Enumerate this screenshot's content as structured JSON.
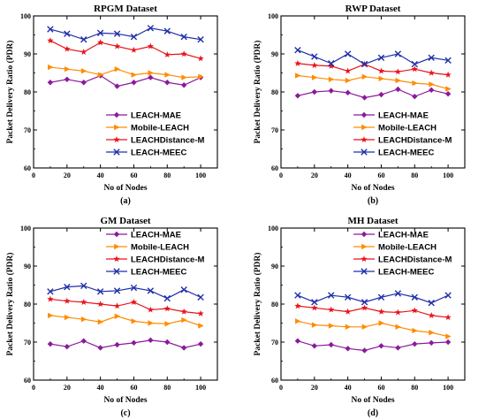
{
  "chart_data": [
    {
      "type": "line",
      "title": "RPGM Dataset",
      "caption": "(a)",
      "xlabel": "No of Nodes",
      "ylabel": "Packet Delivery Ratio (PDR)",
      "xlim": [
        0,
        110
      ],
      "ylim": [
        60,
        100
      ],
      "xticks": [
        0,
        20,
        40,
        60,
        80,
        100
      ],
      "yticks": [
        60,
        70,
        80,
        90,
        100
      ],
      "legend_position": "center-right",
      "x": [
        10,
        20,
        30,
        40,
        50,
        60,
        70,
        80,
        90,
        100
      ],
      "series": [
        {
          "name": "LEACH-MAE",
          "color": "#8B1A9B",
          "marker": "diamond",
          "values": [
            82.5,
            83.3,
            82.5,
            84.3,
            81.5,
            82.5,
            83.8,
            82.5,
            81.8,
            83.8
          ]
        },
        {
          "name": "Mobile-LEACH",
          "color": "#FF8C00",
          "marker": "triangle-right",
          "values": [
            86.5,
            86.0,
            85.5,
            84.5,
            86.0,
            84.5,
            85.0,
            84.5,
            83.8,
            84.0
          ]
        },
        {
          "name": "LEACHDistance-M",
          "color": "#E8141C",
          "marker": "star",
          "values": [
            93.5,
            91.3,
            90.5,
            93.0,
            92.0,
            91.0,
            92.0,
            89.8,
            90.0,
            88.8
          ]
        },
        {
          "name": "LEACH-MEEC",
          "color": "#1F2FA8",
          "marker": "x",
          "values": [
            96.5,
            95.3,
            93.8,
            95.5,
            95.3,
            94.5,
            96.8,
            96.0,
            94.5,
            93.8
          ]
        }
      ]
    },
    {
      "type": "line",
      "title": "RWP Dataset",
      "caption": "(b)",
      "xlabel": "No of Nodes",
      "ylabel": "Packet Delivery Ratio (PDR)",
      "xlim": [
        0,
        110
      ],
      "ylim": [
        60,
        100
      ],
      "xticks": [
        0,
        20,
        40,
        60,
        80,
        100
      ],
      "yticks": [
        60,
        70,
        80,
        90,
        100
      ],
      "legend_position": "center-right",
      "x": [
        10,
        20,
        30,
        40,
        50,
        60,
        70,
        80,
        90,
        100
      ],
      "series": [
        {
          "name": "LEACH-MAE",
          "color": "#8B1A9B",
          "marker": "diamond",
          "values": [
            79.0,
            80.0,
            80.3,
            79.8,
            78.5,
            79.3,
            80.7,
            78.8,
            80.5,
            79.5
          ]
        },
        {
          "name": "Mobile-LEACH",
          "color": "#FF8C00",
          "marker": "triangle-right",
          "values": [
            84.3,
            83.8,
            83.3,
            83.0,
            84.0,
            83.5,
            83.0,
            82.3,
            82.0,
            80.8
          ]
        },
        {
          "name": "LEACHDistance-M",
          "color": "#E8141C",
          "marker": "star",
          "values": [
            87.5,
            87.0,
            86.8,
            85.5,
            87.3,
            85.5,
            85.3,
            86.0,
            85.0,
            84.5
          ]
        },
        {
          "name": "LEACH-MEEC",
          "color": "#1F2FA8",
          "marker": "x",
          "values": [
            91.0,
            89.3,
            87.5,
            90.0,
            87.3,
            89.0,
            90.0,
            87.3,
            89.0,
            88.3
          ]
        }
      ]
    },
    {
      "type": "line",
      "title": "GM Dataset",
      "caption": "(c)",
      "xlabel": "No of Nodes",
      "ylabel": "Packet Delivery Ratio (PDR)",
      "xlim": [
        0,
        110
      ],
      "ylim": [
        60,
        100
      ],
      "xticks": [
        0,
        20,
        40,
        60,
        80,
        100
      ],
      "yticks": [
        60,
        70,
        80,
        90,
        100
      ],
      "legend_position": "top-right",
      "x": [
        10,
        20,
        30,
        40,
        50,
        60,
        70,
        80,
        90,
        100
      ],
      "series": [
        {
          "name": "LEACH-MAE",
          "color": "#8B1A9B",
          "marker": "diamond",
          "values": [
            69.5,
            68.8,
            70.3,
            68.5,
            69.3,
            69.8,
            70.5,
            70.0,
            68.5,
            69.5
          ]
        },
        {
          "name": "Mobile-LEACH",
          "color": "#FF8C00",
          "marker": "triangle-right",
          "values": [
            77.0,
            76.5,
            76.0,
            75.3,
            76.8,
            75.5,
            75.0,
            74.8,
            75.8,
            74.3
          ]
        },
        {
          "name": "LEACHDistance-M",
          "color": "#E8141C",
          "marker": "star",
          "values": [
            81.3,
            80.8,
            80.5,
            80.0,
            79.5,
            80.5,
            78.5,
            78.8,
            78.0,
            77.5
          ]
        },
        {
          "name": "LEACH-MEEC",
          "color": "#1F2FA8",
          "marker": "x",
          "values": [
            83.3,
            84.5,
            84.8,
            83.3,
            83.5,
            84.3,
            83.5,
            81.5,
            83.8,
            81.8
          ]
        }
      ]
    },
    {
      "type": "line",
      "title": "MH Dataset",
      "caption": "(d)",
      "xlabel": "No of Nodes",
      "ylabel": "Packet Delivery Ratio (PDR)",
      "xlim": [
        0,
        110
      ],
      "ylim": [
        60,
        100
      ],
      "xticks": [
        0,
        20,
        40,
        60,
        80,
        100
      ],
      "yticks": [
        60,
        70,
        80,
        90,
        100
      ],
      "legend_position": "top-right",
      "x": [
        10,
        20,
        30,
        40,
        50,
        60,
        70,
        80,
        90,
        100
      ],
      "series": [
        {
          "name": "LEACH-MAE",
          "color": "#8B1A9B",
          "marker": "diamond",
          "values": [
            70.3,
            69.0,
            69.3,
            68.3,
            67.8,
            69.0,
            68.5,
            69.5,
            69.8,
            70.0
          ]
        },
        {
          "name": "Mobile-LEACH",
          "color": "#FF8C00",
          "marker": "triangle-right",
          "values": [
            75.5,
            74.5,
            74.3,
            74.0,
            74.0,
            75.0,
            74.0,
            73.0,
            72.5,
            71.5
          ]
        },
        {
          "name": "LEACHDistance-M",
          "color": "#E8141C",
          "marker": "star",
          "values": [
            79.5,
            79.0,
            78.5,
            78.0,
            79.0,
            78.0,
            77.8,
            78.3,
            77.0,
            76.5
          ]
        },
        {
          "name": "LEACH-MEEC",
          "color": "#1F2FA8",
          "marker": "x",
          "values": [
            82.3,
            80.5,
            82.3,
            81.8,
            80.5,
            81.8,
            82.8,
            81.8,
            80.3,
            82.3
          ]
        }
      ]
    }
  ]
}
